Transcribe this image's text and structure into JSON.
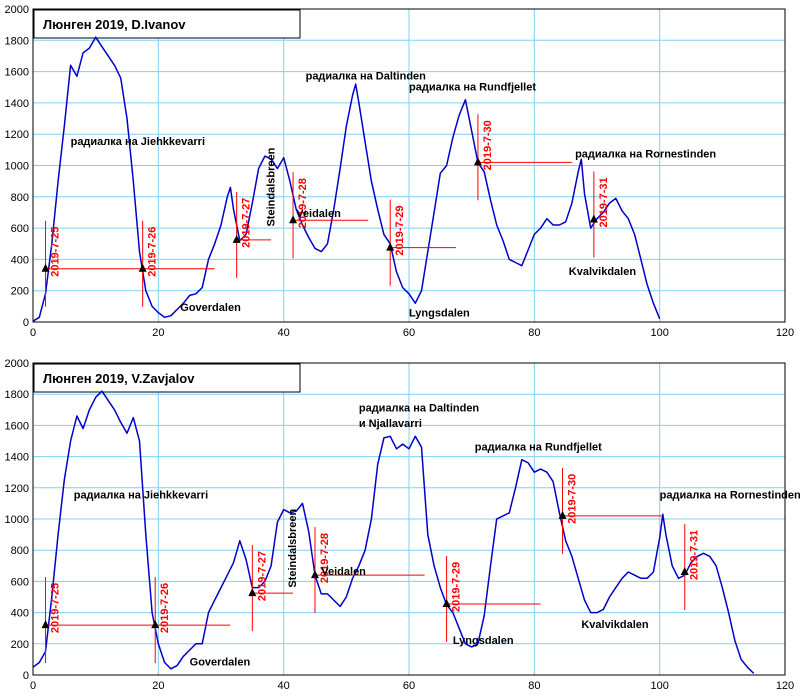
{
  "chart_data": [
    {
      "type": "line",
      "title": "Люнген 2019, D.Ivanov",
      "xlim": [
        0,
        120
      ],
      "ylim": [
        0,
        2000
      ],
      "x_ticks": [
        0,
        20,
        40,
        60,
        80,
        100,
        120
      ],
      "y_ticks": [
        0,
        200,
        400,
        600,
        800,
        1000,
        1200,
        1400,
        1600,
        1800,
        2000
      ],
      "grid": true,
      "series": [
        {
          "color": "#0000cc",
          "points": [
            [
              0,
              5
            ],
            [
              1,
              30
            ],
            [
              2,
              180
            ],
            [
              3,
              500
            ],
            [
              4,
              900
            ],
            [
              5,
              1250
            ],
            [
              6,
              1640
            ],
            [
              7,
              1570
            ],
            [
              8,
              1720
            ],
            [
              9,
              1750
            ],
            [
              10,
              1820
            ],
            [
              11,
              1760
            ],
            [
              12,
              1700
            ],
            [
              13,
              1640
            ],
            [
              14,
              1560
            ],
            [
              15,
              1300
            ],
            [
              16,
              900
            ],
            [
              17,
              450
            ],
            [
              18,
              200
            ],
            [
              19,
              100
            ],
            [
              20,
              60
            ],
            [
              21,
              30
            ],
            [
              22,
              40
            ],
            [
              23,
              80
            ],
            [
              24,
              120
            ],
            [
              25,
              170
            ],
            [
              26,
              180
            ],
            [
              27,
              220
            ],
            [
              28,
              400
            ],
            [
              29,
              500
            ],
            [
              30,
              620
            ],
            [
              31,
              800
            ],
            [
              31.5,
              860
            ],
            [
              32,
              720
            ],
            [
              33,
              520
            ],
            [
              34,
              560
            ],
            [
              35,
              760
            ],
            [
              36,
              980
            ],
            [
              37,
              1060
            ],
            [
              38,
              1040
            ],
            [
              39,
              980
            ],
            [
              40,
              1050
            ],
            [
              41,
              900
            ],
            [
              42,
              720
            ],
            [
              43,
              620
            ],
            [
              44,
              540
            ],
            [
              45,
              470
            ],
            [
              46,
              450
            ],
            [
              47,
              500
            ],
            [
              48,
              720
            ],
            [
              49,
              980
            ],
            [
              50,
              1250
            ],
            [
              51,
              1450
            ],
            [
              51.5,
              1520
            ],
            [
              52,
              1400
            ],
            [
              53,
              1150
            ],
            [
              54,
              900
            ],
            [
              55,
              720
            ],
            [
              56,
              560
            ],
            [
              57,
              500
            ],
            [
              58,
              320
            ],
            [
              59,
              220
            ],
            [
              60,
              180
            ],
            [
              61,
              120
            ],
            [
              62,
              200
            ],
            [
              63,
              450
            ],
            [
              64,
              700
            ],
            [
              65,
              950
            ],
            [
              66,
              1000
            ],
            [
              67,
              1180
            ],
            [
              68,
              1320
            ],
            [
              69,
              1420
            ],
            [
              70,
              1220
            ],
            [
              71,
              1020
            ],
            [
              72,
              960
            ],
            [
              73,
              780
            ],
            [
              74,
              620
            ],
            [
              75,
              520
            ],
            [
              76,
              400
            ],
            [
              77,
              380
            ],
            [
              78,
              360
            ],
            [
              79,
              460
            ],
            [
              80,
              560
            ],
            [
              81,
              600
            ],
            [
              82,
              660
            ],
            [
              83,
              620
            ],
            [
              84,
              620
            ],
            [
              85,
              640
            ],
            [
              86,
              760
            ],
            [
              87,
              960
            ],
            [
              87.5,
              1040
            ],
            [
              88,
              820
            ],
            [
              89,
              600
            ],
            [
              90,
              660
            ],
            [
              91,
              700
            ],
            [
              92,
              760
            ],
            [
              93,
              790
            ],
            [
              94,
              710
            ],
            [
              95,
              660
            ],
            [
              96,
              560
            ],
            [
              97,
              400
            ],
            [
              98,
              240
            ],
            [
              99,
              120
            ],
            [
              100,
              20
            ]
          ]
        }
      ],
      "day_markers": [
        {
          "label": "2019-7-25",
          "x": 2,
          "y": 340
        },
        {
          "label": "2019-7-26",
          "x": 17.5,
          "y": 340
        },
        {
          "label": "2019-7-27",
          "x": 32.5,
          "y": 525
        },
        {
          "label": "2019-7-28",
          "x": 41.5,
          "y": 650
        },
        {
          "label": "2019-7-29",
          "x": 57,
          "y": 475
        },
        {
          "label": "2019-7-30",
          "x": 71,
          "y": 1020
        },
        {
          "label": "2019-7-31",
          "x": 89.5,
          "y": 655
        }
      ],
      "annotations": [
        {
          "text": "радиалка на Jiehkkevarri",
          "x": 6,
          "y": 1130
        },
        {
          "text": "радиалка на Daltinden",
          "x": 43.5,
          "y": 1550
        },
        {
          "text": "радиалка на Rundfjellet",
          "x": 60,
          "y": 1480
        },
        {
          "text": "радиалка на Rornestinden",
          "x": 86.5,
          "y": 1050
        },
        {
          "text": "Goverdalen",
          "x": 23.5,
          "y": 70
        },
        {
          "text": "Veidalen",
          "x": 42,
          "y": 670
        },
        {
          "text": "Lyngsdalen",
          "x": 60,
          "y": 35
        },
        {
          "text": "Kvalvikdalen",
          "x": 85.5,
          "y": 300
        },
        {
          "text": "Steindalsbreen",
          "x": 38.5,
          "y": 610,
          "vertical": true
        }
      ]
    },
    {
      "type": "line",
      "title": "Люнген 2019, V.Zavjalov",
      "xlim": [
        0,
        120
      ],
      "ylim": [
        0,
        2000
      ],
      "x_ticks": [
        0,
        20,
        40,
        60,
        80,
        100,
        120
      ],
      "y_ticks": [
        0,
        200,
        400,
        600,
        800,
        1000,
        1200,
        1400,
        1600,
        1800,
        2000
      ],
      "grid": true,
      "series": [
        {
          "color": "#0000cc",
          "points": [
            [
              0,
              50
            ],
            [
              1,
              80
            ],
            [
              2,
              150
            ],
            [
              3,
              500
            ],
            [
              4,
              900
            ],
            [
              5,
              1250
            ],
            [
              6,
              1500
            ],
            [
              7,
              1660
            ],
            [
              8,
              1580
            ],
            [
              9,
              1700
            ],
            [
              10,
              1780
            ],
            [
              11,
              1820
            ],
            [
              12,
              1760
            ],
            [
              13,
              1700
            ],
            [
              14,
              1620
            ],
            [
              15,
              1550
            ],
            [
              16,
              1650
            ],
            [
              17,
              1500
            ],
            [
              18,
              900
            ],
            [
              19,
              400
            ],
            [
              20,
              200
            ],
            [
              21,
              80
            ],
            [
              22,
              40
            ],
            [
              23,
              60
            ],
            [
              24,
              120
            ],
            [
              25,
              160
            ],
            [
              26,
              200
            ],
            [
              27,
              200
            ],
            [
              28,
              400
            ],
            [
              29,
              480
            ],
            [
              30,
              560
            ],
            [
              31,
              640
            ],
            [
              32,
              720
            ],
            [
              33,
              860
            ],
            [
              34,
              740
            ],
            [
              35,
              560
            ],
            [
              36,
              560
            ],
            [
              37,
              600
            ],
            [
              38,
              700
            ],
            [
              39,
              980
            ],
            [
              40,
              1060
            ],
            [
              41,
              1040
            ],
            [
              42,
              1050
            ],
            [
              43,
              1100
            ],
            [
              44,
              920
            ],
            [
              45,
              640
            ],
            [
              46,
              520
            ],
            [
              47,
              520
            ],
            [
              48,
              480
            ],
            [
              49,
              440
            ],
            [
              50,
              500
            ],
            [
              51,
              620
            ],
            [
              52,
              700
            ],
            [
              53,
              800
            ],
            [
              54,
              1000
            ],
            [
              55,
              1350
            ],
            [
              56,
              1520
            ],
            [
              57,
              1530
            ],
            [
              58,
              1450
            ],
            [
              59,
              1480
            ],
            [
              60,
              1450
            ],
            [
              61,
              1530
            ],
            [
              62,
              1460
            ],
            [
              63,
              900
            ],
            [
              64,
              700
            ],
            [
              65,
              560
            ],
            [
              66,
              450
            ],
            [
              67,
              400
            ],
            [
              68,
              300
            ],
            [
              69,
              200
            ],
            [
              70,
              180
            ],
            [
              71,
              200
            ],
            [
              72,
              380
            ],
            [
              73,
              700
            ],
            [
              74,
              1000
            ],
            [
              75,
              1020
            ],
            [
              76,
              1040
            ],
            [
              77,
              1200
            ],
            [
              78,
              1380
            ],
            [
              79,
              1360
            ],
            [
              80,
              1300
            ],
            [
              81,
              1320
            ],
            [
              82,
              1300
            ],
            [
              83,
              1240
            ],
            [
              84,
              1040
            ],
            [
              85,
              860
            ],
            [
              86,
              760
            ],
            [
              87,
              620
            ],
            [
              88,
              480
            ],
            [
              89,
              400
            ],
            [
              90,
              400
            ],
            [
              91,
              420
            ],
            [
              92,
              500
            ],
            [
              93,
              560
            ],
            [
              94,
              620
            ],
            [
              95,
              660
            ],
            [
              96,
              640
            ],
            [
              97,
              620
            ],
            [
              98,
              620
            ],
            [
              99,
              660
            ],
            [
              100,
              880
            ],
            [
              100.5,
              1030
            ],
            [
              101,
              900
            ],
            [
              102,
              700
            ],
            [
              103,
              620
            ],
            [
              104,
              640
            ],
            [
              105,
              720
            ],
            [
              106,
              760
            ],
            [
              107,
              780
            ],
            [
              108,
              760
            ],
            [
              109,
              700
            ],
            [
              110,
              560
            ],
            [
              111,
              400
            ],
            [
              112,
              220
            ],
            [
              113,
              100
            ],
            [
              114,
              50
            ],
            [
              115,
              10
            ]
          ]
        }
      ],
      "day_markers": [
        {
          "label": "2019-7-25",
          "x": 2,
          "y": 320
        },
        {
          "label": "2019-7-26",
          "x": 19.5,
          "y": 320
        },
        {
          "label": "2019-7-27",
          "x": 35,
          "y": 525
        },
        {
          "label": "2019-7-28",
          "x": 45,
          "y": 640
        },
        {
          "label": "2019-7-29",
          "x": 66,
          "y": 455
        },
        {
          "label": "2019-7-30",
          "x": 84.5,
          "y": 1020
        },
        {
          "label": "2019-7-31",
          "x": 104,
          "y": 660
        }
      ],
      "annotations": [
        {
          "text": "радиалка на Jiehkkevarri",
          "x": 6.5,
          "y": 1130
        },
        {
          "text": "радиалка на Daltinden",
          "x": 52,
          "y": 1690
        },
        {
          "text": "и Njallavarri",
          "x": 52,
          "y": 1590
        },
        {
          "text": "радиалка на Rundfjellet",
          "x": 70.5,
          "y": 1440
        },
        {
          "text": "радиалка на Rornestinden",
          "x": 100,
          "y": 1130
        },
        {
          "text": "Goverdalen",
          "x": 25,
          "y": 60
        },
        {
          "text": "Veidalen",
          "x": 46,
          "y": 640
        },
        {
          "text": "Lyngsdalen",
          "x": 67,
          "y": 200
        },
        {
          "text": "Kvalvikdalen",
          "x": 87.5,
          "y": 300
        },
        {
          "text": "Steindalsbreen",
          "x": 42,
          "y": 560,
          "vertical": true
        }
      ]
    }
  ]
}
